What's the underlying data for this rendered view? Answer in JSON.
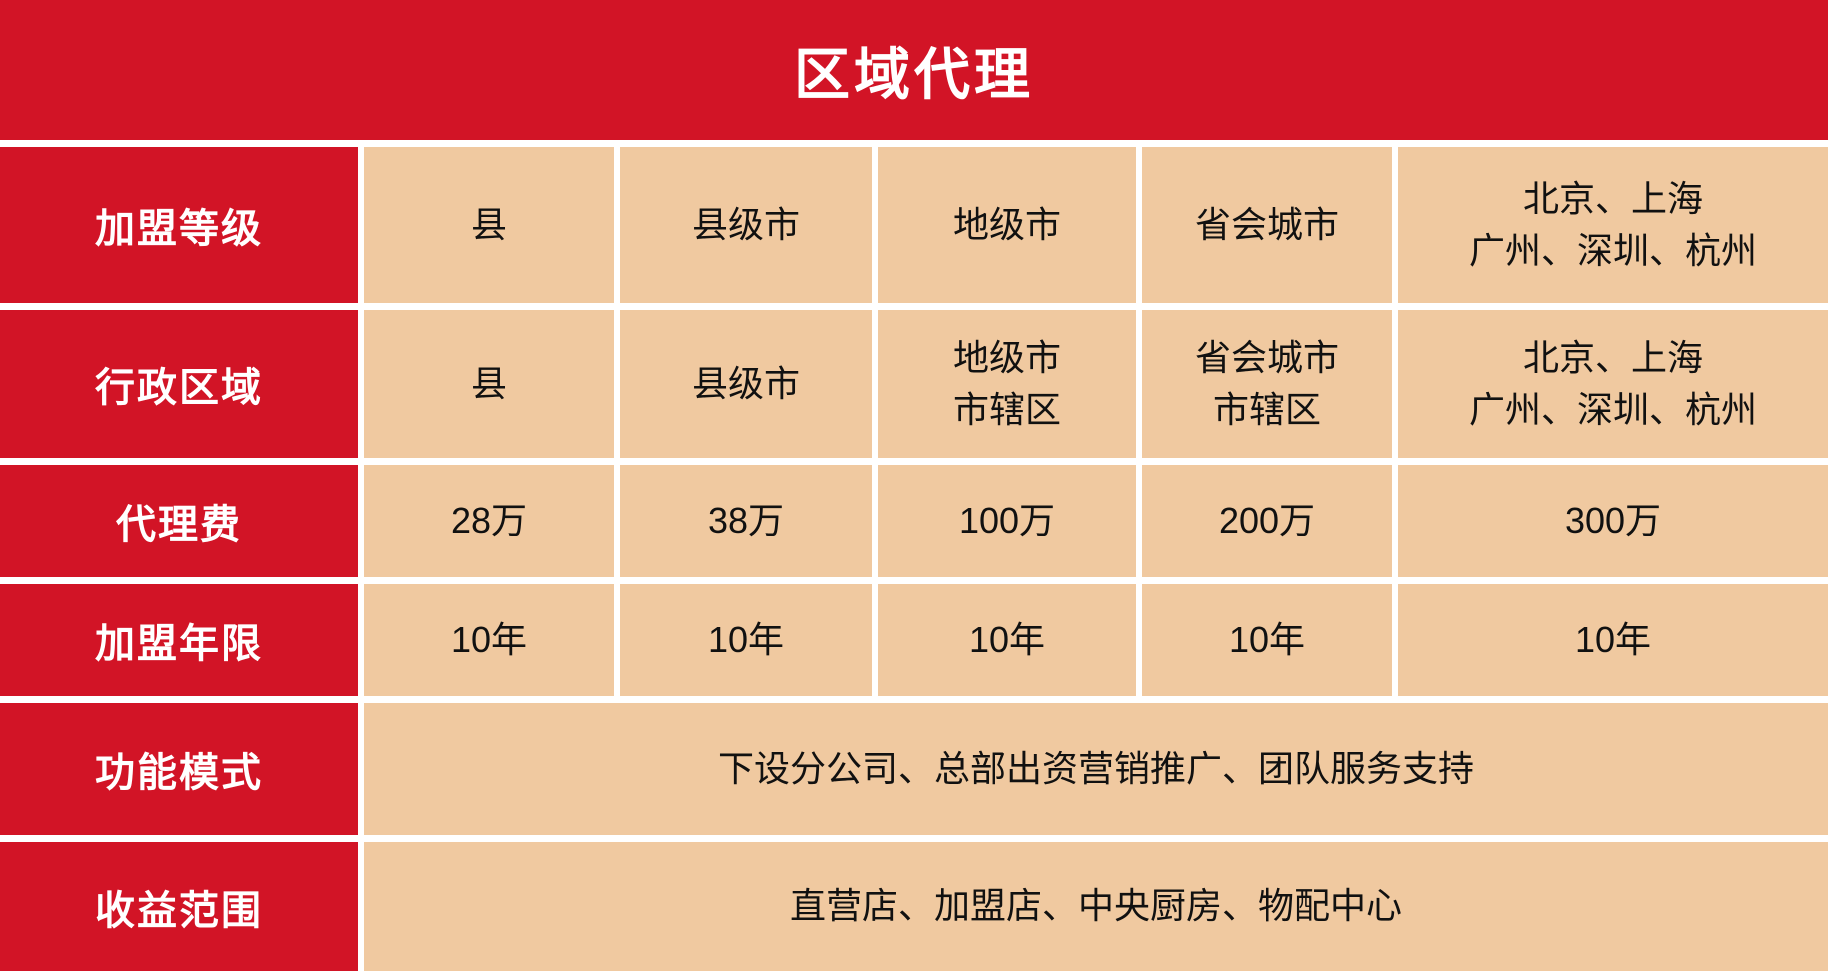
{
  "title": "区域代理",
  "colors": {
    "accent_red": "#d21426",
    "cell_beige": "#f0c9a0",
    "divider_white": "#ffffff",
    "label_text": "#ffffff",
    "cell_text": "#111111"
  },
  "table": {
    "rows": [
      {
        "label": "加盟等级",
        "cells": [
          "县",
          "县级市",
          "地级市",
          "省会城市",
          "北京、上海\n广州、深圳、杭州"
        ]
      },
      {
        "label": "行政区域",
        "cells": [
          "县",
          "县级市",
          "地级市\n市辖区",
          "省会城市\n市辖区",
          "北京、上海\n广州、深圳、杭州"
        ]
      },
      {
        "label": "代理费",
        "cells": [
          "28万",
          "38万",
          "100万",
          "200万",
          "300万"
        ]
      },
      {
        "label": "加盟年限",
        "cells": [
          "10年",
          "10年",
          "10年",
          "10年",
          "10年"
        ]
      },
      {
        "label": "功能模式",
        "merged": "下设分公司、总部出资营销推广、团队服务支持"
      },
      {
        "label": "收益范围",
        "merged": "直营店、加盟店、中央厨房、物配中心"
      }
    ]
  }
}
